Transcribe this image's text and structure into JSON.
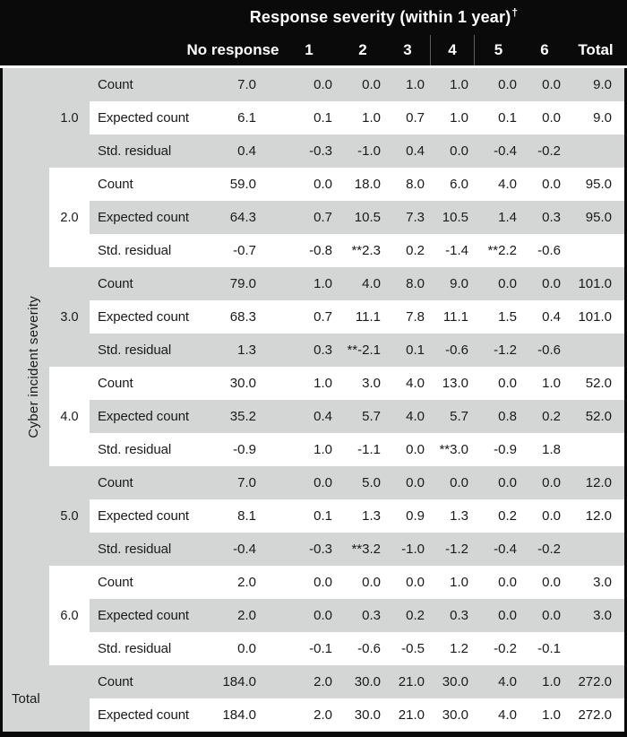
{
  "title": {
    "text": "Response severity (within 1 year)",
    "dagger": "†"
  },
  "columns": [
    "No response",
    "1",
    "2",
    "3",
    "4",
    "5",
    "6",
    "Total"
  ],
  "highlighted_column": "4",
  "row_axis_label": "Cyber incident severity",
  "groups": [
    {
      "label": "1.0",
      "rows": [
        {
          "label": "Count",
          "values": [
            "7.0",
            "0.0",
            "0.0",
            "1.0",
            "1.0",
            "0.0",
            "0.0",
            "9.0"
          ]
        },
        {
          "label": "Expected count",
          "values": [
            "6.1",
            "0.1",
            "1.0",
            "0.7",
            "1.0",
            "0.1",
            "0.0",
            "9.0"
          ]
        },
        {
          "label": "Std. residual",
          "values": [
            "0.4",
            "-0.3",
            "-1.0",
            "0.4",
            "0.0",
            "-0.4",
            "-0.2",
            ""
          ]
        }
      ]
    },
    {
      "label": "2.0",
      "rows": [
        {
          "label": "Count",
          "values": [
            "59.0",
            "0.0",
            "18.0",
            "8.0",
            "6.0",
            "4.0",
            "0.0",
            "95.0"
          ]
        },
        {
          "label": "Expected count",
          "values": [
            "64.3",
            "0.7",
            "10.5",
            "7.3",
            "10.5",
            "1.4",
            "0.3",
            "95.0"
          ]
        },
        {
          "label": "Std. residual",
          "values": [
            "-0.7",
            "-0.8",
            "**2.3",
            "0.2",
            "-1.4",
            "**2.2",
            "-0.6",
            ""
          ]
        }
      ]
    },
    {
      "label": "3.0",
      "rows": [
        {
          "label": "Count",
          "values": [
            "79.0",
            "1.0",
            "4.0",
            "8.0",
            "9.0",
            "0.0",
            "0.0",
            "101.0"
          ]
        },
        {
          "label": "Expected count",
          "values": [
            "68.3",
            "0.7",
            "11.1",
            "7.8",
            "11.1",
            "1.5",
            "0.4",
            "101.0"
          ]
        },
        {
          "label": "Std. residual",
          "values": [
            "1.3",
            "0.3",
            "**-2.1",
            "0.1",
            "-0.6",
            "-1.2",
            "-0.6",
            ""
          ]
        }
      ]
    },
    {
      "label": "4.0",
      "rows": [
        {
          "label": "Count",
          "values": [
            "30.0",
            "1.0",
            "3.0",
            "4.0",
            "13.0",
            "0.0",
            "1.0",
            "52.0"
          ]
        },
        {
          "label": "Expected count",
          "values": [
            "35.2",
            "0.4",
            "5.7",
            "4.0",
            "5.7",
            "0.8",
            "0.2",
            "52.0"
          ]
        },
        {
          "label": "Std. residual",
          "values": [
            "-0.9",
            "1.0",
            "-1.1",
            "0.0",
            "**3.0",
            "-0.9",
            "1.8",
            ""
          ]
        }
      ]
    },
    {
      "label": "5.0",
      "rows": [
        {
          "label": "Count",
          "values": [
            "7.0",
            "0.0",
            "5.0",
            "0.0",
            "0.0",
            "0.0",
            "0.0",
            "12.0"
          ]
        },
        {
          "label": "Expected count",
          "values": [
            "8.1",
            "0.1",
            "1.3",
            "0.9",
            "1.3",
            "0.2",
            "0.0",
            "12.0"
          ]
        },
        {
          "label": "Std. residual",
          "values": [
            "-0.4",
            "-0.3",
            "**3.2",
            "-1.0",
            "-1.2",
            "-0.4",
            "-0.2",
            ""
          ]
        }
      ]
    },
    {
      "label": "6.0",
      "rows": [
        {
          "label": "Count",
          "values": [
            "2.0",
            "0.0",
            "0.0",
            "0.0",
            "1.0",
            "0.0",
            "0.0",
            "3.0"
          ]
        },
        {
          "label": "Expected count",
          "values": [
            "2.0",
            "0.0",
            "0.3",
            "0.2",
            "0.3",
            "0.0",
            "0.0",
            "3.0"
          ]
        },
        {
          "label": "Std. residual",
          "values": [
            "0.0",
            "-0.1",
            "-0.6",
            "-0.5",
            "1.2",
            "-0.2",
            "-0.1",
            ""
          ]
        }
      ]
    },
    {
      "label": "Total",
      "rows": [
        {
          "label": "Count",
          "values": [
            "184.0",
            "2.0",
            "30.0",
            "21.0",
            "30.0",
            "4.0",
            "1.0",
            "272.0"
          ]
        },
        {
          "label": "Expected count",
          "values": [
            "184.0",
            "2.0",
            "30.0",
            "21.0",
            "30.0",
            "4.0",
            "1.0",
            "272.0"
          ]
        }
      ]
    }
  ],
  "colors": {
    "header_bg": "#0a0a0a",
    "header_text": "#ffffff",
    "row_gray": "#d4d6d5",
    "border_black": "#0a0a0a",
    "text": "#1a1a1a"
  }
}
